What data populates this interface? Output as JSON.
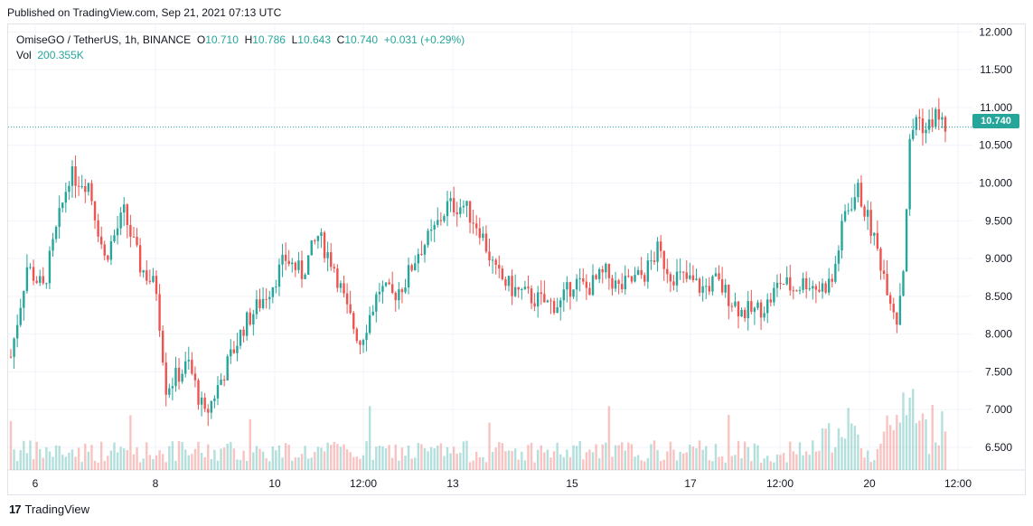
{
  "published": "Published on TradingView.com, Sep 21, 2021 07:13 UTC",
  "legend": {
    "symbol": "OmiseGO / TetherUS, 1h, BINANCE",
    "open_label": "O",
    "open": "10.710",
    "high_label": "H",
    "high": "10.786",
    "low_label": "L",
    "low": "10.643",
    "close_label": "C",
    "close": "10.740",
    "change": "+0.031 (+0.29%)",
    "vol_label": "Vol",
    "vol": "200.355K"
  },
  "last_price": "10.740",
  "footer": {
    "brand": "TradingView",
    "logo_text": "17"
  },
  "colors": {
    "up": "#26a69a",
    "down": "#ef5350",
    "grid": "#f0f3fa",
    "text": "#131722"
  },
  "chart_data": {
    "type": "candlestick",
    "y_axis_ticks": [
      "12.000",
      "11.500",
      "11.000",
      "10.500",
      "10.000",
      "9.500",
      "9.000",
      "8.500",
      "8.000",
      "7.500",
      "7.000",
      "6.500"
    ],
    "ylim": [
      6.2,
      12.1
    ],
    "x_axis_ticks": [
      "6",
      "8",
      "10",
      "12:00",
      "13",
      "15",
      "17",
      "12:00",
      "20",
      "12:00"
    ],
    "grid": true,
    "last_price_line": 10.74,
    "close_path": [
      [
        0,
        7.7
      ],
      [
        5,
        8.9
      ],
      [
        10,
        8.6
      ],
      [
        18,
        10.1
      ],
      [
        24,
        10.0
      ],
      [
        29,
        9.0
      ],
      [
        35,
        9.6
      ],
      [
        40,
        8.9
      ],
      [
        45,
        8.6
      ],
      [
        48,
        7.3
      ],
      [
        55,
        7.6
      ],
      [
        60,
        6.9
      ],
      [
        65,
        7.4
      ],
      [
        72,
        8.1
      ],
      [
        80,
        8.6
      ],
      [
        85,
        9.0
      ],
      [
        90,
        8.8
      ],
      [
        95,
        9.3
      ],
      [
        100,
        8.9
      ],
      [
        104,
        8.3
      ],
      [
        108,
        7.9
      ],
      [
        114,
        8.6
      ],
      [
        118,
        8.5
      ],
      [
        122,
        8.7
      ],
      [
        126,
        9.1
      ],
      [
        130,
        9.3
      ],
      [
        135,
        9.7
      ],
      [
        140,
        9.7
      ],
      [
        145,
        9.4
      ],
      [
        150,
        8.8
      ],
      [
        155,
        8.6
      ],
      [
        160,
        8.5
      ],
      [
        166,
        8.4
      ],
      [
        170,
        8.4
      ],
      [
        174,
        8.7
      ],
      [
        178,
        8.6
      ],
      [
        184,
        8.8
      ],
      [
        188,
        8.6
      ],
      [
        192,
        8.7
      ],
      [
        196,
        8.8
      ],
      [
        200,
        9.1
      ],
      [
        204,
        8.8
      ],
      [
        210,
        8.7
      ],
      [
        214,
        8.6
      ],
      [
        218,
        8.7
      ],
      [
        222,
        8.5
      ],
      [
        226,
        8.3
      ],
      [
        230,
        8.3
      ],
      [
        234,
        8.4
      ],
      [
        238,
        8.7
      ],
      [
        242,
        8.6
      ],
      [
        246,
        8.7
      ],
      [
        250,
        8.6
      ],
      [
        254,
        8.7
      ],
      [
        258,
        9.6
      ],
      [
        262,
        9.9
      ],
      [
        266,
        9.4
      ],
      [
        270,
        8.8
      ],
      [
        274,
        8.2
      ],
      [
        276,
        8.9
      ],
      [
        278,
        10.5
      ],
      [
        280,
        10.9
      ],
      [
        283,
        10.7
      ],
      [
        286,
        10.9
      ],
      [
        290,
        10.7
      ]
    ],
    "n_candles": 290,
    "volume": {
      "label": "Vol",
      "last": "200.355K"
    }
  }
}
